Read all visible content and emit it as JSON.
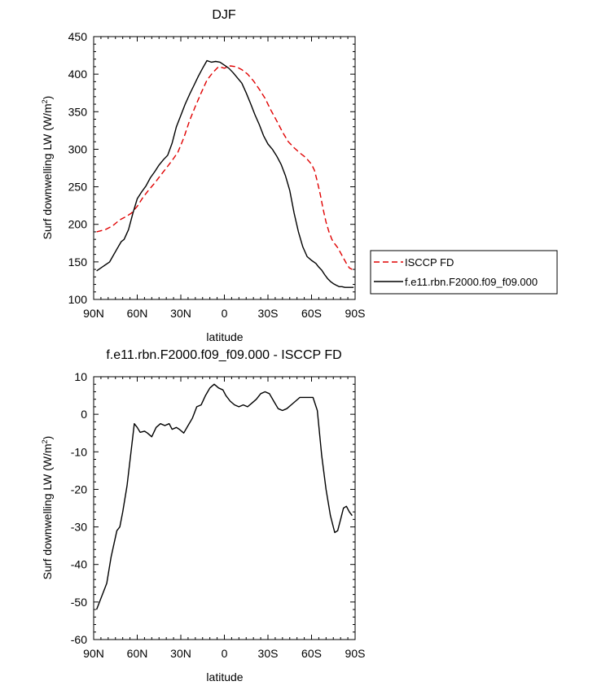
{
  "chart_data": [
    {
      "type": "line",
      "title": "DJF",
      "xlabel": "latitude",
      "ylabel": "Surf downwelling LW (W/m²)",
      "ylim": [
        100,
        450
      ],
      "xlim": [
        -90,
        90
      ],
      "yticks": [
        "100",
        "150",
        "200",
        "250",
        "300",
        "350",
        "400",
        "450"
      ],
      "ytick_values": [
        100,
        150,
        200,
        250,
        300,
        350,
        400,
        450
      ],
      "xticks": [
        "90N",
        "60N",
        "30N",
        "0",
        "30S",
        "60S",
        "90S"
      ],
      "xtick_values": [
        -90,
        -60,
        -30,
        0,
        30,
        60,
        90
      ],
      "legend": [
        "ISCCP FD",
        "f.e11.rbn.F2000.f09_f09.000"
      ],
      "series": [
        {
          "name": "ISCCP FD",
          "color": "#e00000",
          "dash": "dashed",
          "x": [
            -88,
            -82,
            -77,
            -72,
            -68,
            -64,
            -60,
            -56,
            -52,
            -48,
            -44,
            -40,
            -36,
            -32,
            -28,
            -24,
            -20,
            -16,
            -12,
            -8,
            -4,
            0,
            4,
            8,
            12,
            16,
            20,
            24,
            28,
            32,
            36,
            40,
            44,
            48,
            52,
            56,
            60,
            62,
            64,
            66,
            68,
            70,
            72,
            74,
            76,
            78,
            80,
            82,
            84,
            86,
            88
          ],
          "values": [
            190,
            193,
            198,
            206,
            210,
            215,
            224,
            236,
            246,
            255,
            265,
            275,
            285,
            296,
            315,
            338,
            357,
            375,
            392,
            402,
            410,
            408,
            411,
            410,
            406,
            400,
            391,
            380,
            368,
            352,
            338,
            323,
            310,
            302,
            295,
            289,
            280,
            272,
            257,
            240,
            220,
            203,
            190,
            180,
            174,
            169,
            162,
            155,
            148,
            142,
            140
          ]
        },
        {
          "name": "f.e11.rbn.F2000.f09_f09.000",
          "color": "#000000",
          "dash": "solid",
          "x": [
            -88,
            -79,
            -74,
            -71,
            -69,
            -66,
            -63,
            -60,
            -57,
            -54,
            -51,
            -48,
            -45,
            -42,
            -39,
            -36,
            -33,
            -30,
            -27,
            -24,
            -21,
            -18,
            -15,
            -12,
            -9,
            -6,
            -3,
            0,
            3,
            6,
            9,
            12,
            15,
            18,
            21,
            24,
            27,
            30,
            33,
            36,
            39,
            42,
            45,
            48,
            51,
            54,
            57,
            60,
            63,
            65,
            67,
            69,
            71,
            73,
            75,
            77,
            79,
            81,
            83,
            85,
            87,
            89
          ],
          "values": [
            138,
            150,
            167,
            177,
            180,
            193,
            215,
            234,
            243,
            251,
            262,
            270,
            279,
            286,
            292,
            308,
            330,
            345,
            360,
            373,
            385,
            397,
            408,
            418,
            416,
            417,
            416,
            412,
            408,
            402,
            395,
            388,
            375,
            361,
            346,
            333,
            318,
            307,
            300,
            291,
            280,
            265,
            245,
            215,
            190,
            170,
            157,
            152,
            148,
            143,
            139,
            133,
            128,
            124,
            121,
            119,
            117,
            117,
            116,
            116,
            116,
            116
          ]
        }
      ]
    },
    {
      "type": "line",
      "title": "f.e11.rbn.F2000.f09_f09.000 - ISCCP FD",
      "xlabel": "latitude",
      "ylabel": "Surf downwelling LW (W/m²)",
      "ylim": [
        -60,
        10
      ],
      "xlim": [
        -90,
        90
      ],
      "yticks": [
        "-60",
        "-50",
        "-40",
        "-30",
        "-20",
        "-10",
        "0",
        "10"
      ],
      "ytick_values": [
        -60,
        -50,
        -40,
        -30,
        -20,
        -10,
        0,
        10
      ],
      "xticks": [
        "90N",
        "60N",
        "30N",
        "0",
        "30S",
        "60S",
        "90S"
      ],
      "xtick_values": [
        -90,
        -60,
        -30,
        0,
        30,
        60,
        90
      ],
      "series": [
        {
          "name": "f.e11.rbn.F2000.f09_f09.000 - ISCCP FD",
          "color": "#000000",
          "dash": "solid",
          "x": [
            -88,
            -81,
            -78,
            -74,
            -72,
            -70,
            -67,
            -64,
            -62,
            -60,
            -58,
            -55,
            -53,
            -50,
            -47,
            -44,
            -41,
            -38,
            -36,
            -33,
            -31,
            -28,
            -25,
            -22,
            -19,
            -16,
            -13,
            -10,
            -7,
            -4,
            -1,
            1,
            4,
            7,
            10,
            13,
            16,
            19,
            22,
            25,
            28,
            31,
            34,
            37,
            40,
            43,
            46,
            49,
            52,
            55,
            58,
            61,
            64,
            67,
            70,
            73,
            76,
            78,
            80,
            82,
            84,
            86,
            88
          ],
          "values": [
            -52,
            -45,
            -38,
            -31,
            -30,
            -26,
            -19,
            -9,
            -2.5,
            -3.5,
            -4.8,
            -4.5,
            -5,
            -6,
            -3.5,
            -2.5,
            -3,
            -2.5,
            -4,
            -3.5,
            -4,
            -5,
            -3,
            -1,
            2,
            2.5,
            5,
            7,
            8,
            7,
            6.5,
            5,
            3.5,
            2.5,
            2,
            2.5,
            2,
            3,
            4,
            5.5,
            6,
            5.5,
            3.5,
            1.5,
            1,
            1.5,
            2.5,
            3.5,
            4.5,
            4.5,
            4.5,
            4.5,
            1,
            -11,
            -20,
            -27,
            -31.5,
            -31,
            -28,
            -25,
            -24.5,
            -26,
            -27
          ]
        }
      ]
    }
  ]
}
